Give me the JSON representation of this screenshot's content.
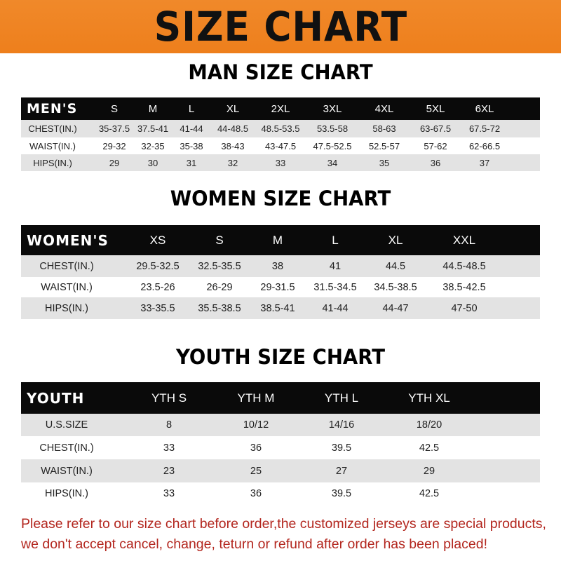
{
  "banner_title": "SIZE CHART",
  "men": {
    "title": "MAN SIZE CHART",
    "header": [
      "MEN'S",
      "S",
      "M",
      "L",
      "XL",
      "2XL",
      "3XL",
      "4XL",
      "5XL",
      "6XL"
    ],
    "rows": [
      [
        "CHEST(IN.)",
        "35-37.5",
        "37.5-41",
        "41-44",
        "44-48.5",
        "48.5-53.5",
        "53.5-58",
        "58-63",
        "63-67.5",
        "67.5-72"
      ],
      [
        "WAIST(IN.)",
        "29-32",
        "32-35",
        "35-38",
        "38-43",
        "43-47.5",
        "47.5-52.5",
        "52.5-57",
        "57-62",
        "62-66.5"
      ],
      [
        "HIPS(IN.)",
        "29",
        "30",
        "31",
        "32",
        "33",
        "34",
        "35",
        "36",
        "37"
      ]
    ]
  },
  "women": {
    "title": "WOMEN SIZE CHART",
    "header": [
      "WOMEN'S",
      "XS",
      "S",
      "M",
      "L",
      "XL",
      "XXL"
    ],
    "rows": [
      [
        "CHEST(IN.)",
        "29.5-32.5",
        "32.5-35.5",
        "38",
        "41",
        "44.5",
        "44.5-48.5"
      ],
      [
        "WAIST(IN.)",
        "23.5-26",
        "26-29",
        "29-31.5",
        "31.5-34.5",
        "34.5-38.5",
        "38.5-42.5"
      ],
      [
        "HIPS(IN.)",
        "33-35.5",
        "35.5-38.5",
        "38.5-41",
        "41-44",
        "44-47",
        "47-50"
      ]
    ]
  },
  "youth": {
    "title": "YOUTH SIZE CHART",
    "header": [
      "YOUTH",
      "YTH S",
      "YTH M",
      "YTH L",
      "YTH XL"
    ],
    "rows": [
      [
        "U.S.SIZE",
        "8",
        "10/12",
        "14/16",
        "18/20"
      ],
      [
        "CHEST(IN.)",
        "33",
        "36",
        "39.5",
        "42.5"
      ],
      [
        "WAIST(IN.)",
        "23",
        "25",
        "27",
        "29"
      ],
      [
        "HIPS(IN.)",
        "33",
        "36",
        "39.5",
        "42.5"
      ]
    ]
  },
  "footer": [
    "Please refer to our size chart before order,the customized jerseys are special products,",
    "we don't accept cancel, change, teturn or refund after order has been placed!"
  ]
}
